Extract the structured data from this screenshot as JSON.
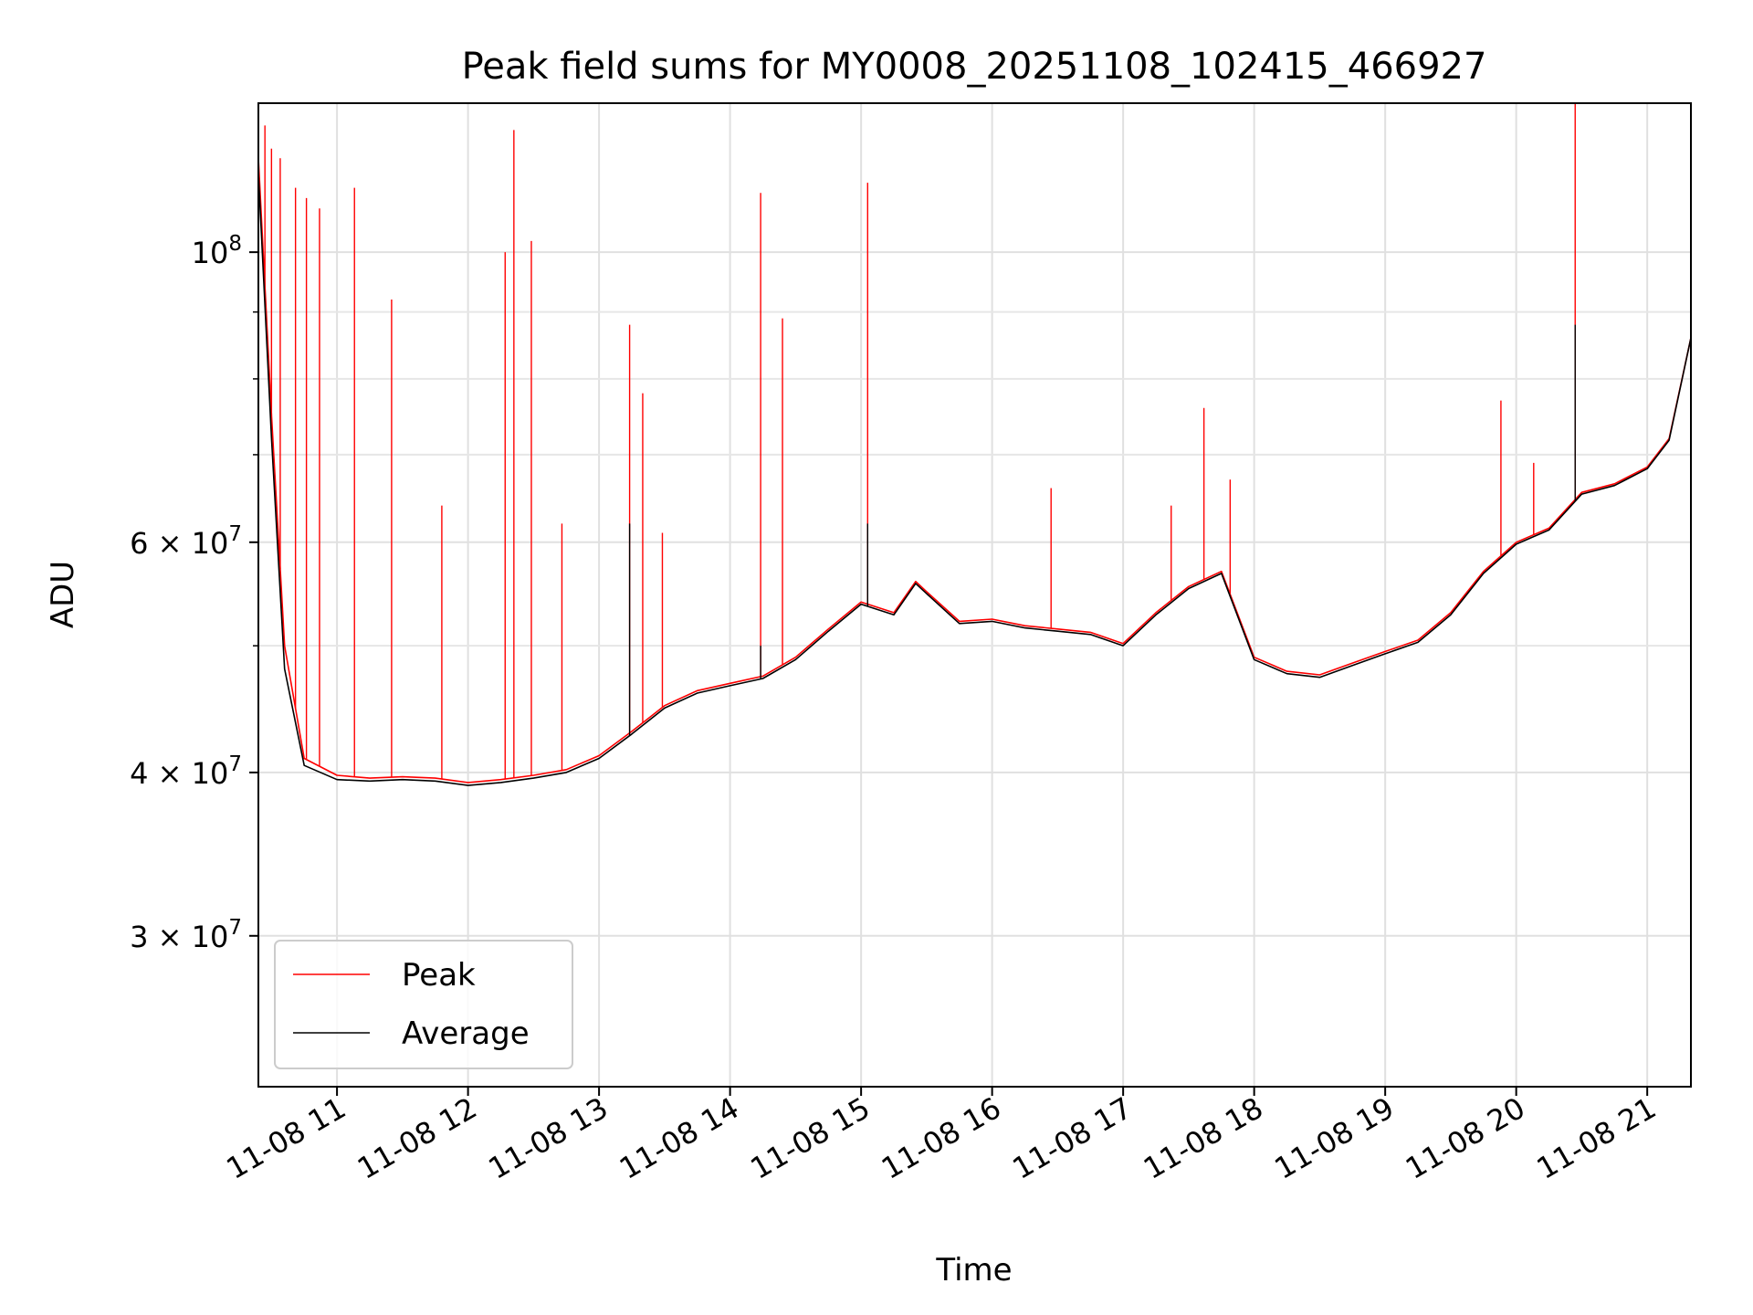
{
  "chart_data": {
    "type": "line",
    "title": "Peak field sums for MY0008_20251108_102415_466927",
    "xlabel": "Time",
    "ylabel": "ADU",
    "yscale": "log",
    "grid": true,
    "legend_position": "lower-left",
    "xlim": [
      "2025-11-08 10:24",
      "2025-11-08 21:20"
    ],
    "ylim": [
      23000000,
      130000000
    ],
    "x_ticks": [
      {
        "value": "2025-11-08 11:00",
        "label": "11-08 11"
      },
      {
        "value": "2025-11-08 12:00",
        "label": "11-08 12"
      },
      {
        "value": "2025-11-08 13:00",
        "label": "11-08 13"
      },
      {
        "value": "2025-11-08 14:00",
        "label": "11-08 14"
      },
      {
        "value": "2025-11-08 15:00",
        "label": "11-08 15"
      },
      {
        "value": "2025-11-08 16:00",
        "label": "11-08 16"
      },
      {
        "value": "2025-11-08 17:00",
        "label": "11-08 17"
      },
      {
        "value": "2025-11-08 18:00",
        "label": "11-08 18"
      },
      {
        "value": "2025-11-08 19:00",
        "label": "11-08 19"
      },
      {
        "value": "2025-11-08 20:00",
        "label": "11-08 20"
      },
      {
        "value": "2025-11-08 21:00",
        "label": "11-08 21"
      }
    ],
    "y_ticks_major": [
      {
        "value": 100000000,
        "base": "10",
        "exp": "8"
      },
      {
        "value": 60000000,
        "base": "6 × 10",
        "exp": "7"
      },
      {
        "value": 40000000,
        "base": "4 × 10",
        "exp": "7"
      },
      {
        "value": 30000000,
        "base": "3 × 10",
        "exp": "7"
      }
    ],
    "y_ticks_minor": [
      70000000,
      80000000,
      90000000,
      50000000
    ],
    "colors": {
      "Peak": "#ff0000",
      "Average": "#000000"
    },
    "series": [
      {
        "name": "Peak",
        "color": "#ff0000",
        "x": [
          "2025-11-08 10:24",
          "2025-11-08 10:30",
          "2025-11-08 10:36",
          "2025-11-08 10:45",
          "2025-11-08 11:00",
          "2025-11-08 11:15",
          "2025-11-08 11:30",
          "2025-11-08 11:45",
          "2025-11-08 12:00",
          "2025-11-08 12:15",
          "2025-11-08 12:30",
          "2025-11-08 12:45",
          "2025-11-08 13:00",
          "2025-11-08 13:15",
          "2025-11-08 13:30",
          "2025-11-08 13:45",
          "2025-11-08 14:00",
          "2025-11-08 14:15",
          "2025-11-08 14:30",
          "2025-11-08 14:45",
          "2025-11-08 15:00",
          "2025-11-08 15:15",
          "2025-11-08 15:25",
          "2025-11-08 15:30",
          "2025-11-08 15:45",
          "2025-11-08 16:00",
          "2025-11-08 16:15",
          "2025-11-08 16:30",
          "2025-11-08 16:45",
          "2025-11-08 17:00",
          "2025-11-08 17:15",
          "2025-11-08 17:30",
          "2025-11-08 17:45",
          "2025-11-08 18:00",
          "2025-11-08 18:15",
          "2025-11-08 18:30",
          "2025-11-08 18:45",
          "2025-11-08 19:00",
          "2025-11-08 19:15",
          "2025-11-08 19:30",
          "2025-11-08 19:45",
          "2025-11-08 20:00",
          "2025-11-08 20:15",
          "2025-11-08 20:30",
          "2025-11-08 20:45",
          "2025-11-08 21:00",
          "2025-11-08 21:10",
          "2025-11-08 21:20"
        ],
        "y": [
          118000000,
          75000000,
          50000000,
          41000000,
          39800000,
          39600000,
          39700000,
          39600000,
          39300000,
          39500000,
          39800000,
          40200000,
          41200000,
          43000000,
          45000000,
          46200000,
          46800000,
          47400000,
          49000000,
          51500000,
          54000000,
          53000000,
          56000000,
          55000000,
          52200000,
          52400000,
          51800000,
          51500000,
          51200000,
          50200000,
          53000000,
          55500000,
          57000000,
          49000000,
          47800000,
          47500000,
          48500000,
          49500000,
          50500000,
          53000000,
          57000000,
          60000000,
          61500000,
          65500000,
          66500000,
          68500000,
          72000000,
          86000000
        ],
        "spikes": [
          {
            "x": "2025-11-08 10:27",
            "y": 125000000
          },
          {
            "x": "2025-11-08 10:30",
            "y": 120000000
          },
          {
            "x": "2025-11-08 10:34",
            "y": 118000000
          },
          {
            "x": "2025-11-08 10:41",
            "y": 112000000
          },
          {
            "x": "2025-11-08 10:46",
            "y": 110000000
          },
          {
            "x": "2025-11-08 10:52",
            "y": 108000000
          },
          {
            "x": "2025-11-08 11:08",
            "y": 112000000
          },
          {
            "x": "2025-11-08 11:25",
            "y": 92000000
          },
          {
            "x": "2025-11-08 11:48",
            "y": 64000000
          },
          {
            "x": "2025-11-08 12:17",
            "y": 100000000
          },
          {
            "x": "2025-11-08 12:21",
            "y": 124000000
          },
          {
            "x": "2025-11-08 12:29",
            "y": 102000000
          },
          {
            "x": "2025-11-08 12:43",
            "y": 62000000
          },
          {
            "x": "2025-11-08 13:14",
            "y": 88000000
          },
          {
            "x": "2025-11-08 13:20",
            "y": 78000000
          },
          {
            "x": "2025-11-08 13:29",
            "y": 61000000
          },
          {
            "x": "2025-11-08 14:14",
            "y": 111000000
          },
          {
            "x": "2025-11-08 14:24",
            "y": 89000000
          },
          {
            "x": "2025-11-08 15:03",
            "y": 113000000
          },
          {
            "x": "2025-11-08 16:27",
            "y": 66000000
          },
          {
            "x": "2025-11-08 17:22",
            "y": 64000000
          },
          {
            "x": "2025-11-08 17:37",
            "y": 76000000
          },
          {
            "x": "2025-11-08 17:49",
            "y": 67000000
          },
          {
            "x": "2025-11-08 19:53",
            "y": 77000000
          },
          {
            "x": "2025-11-08 20:08",
            "y": 69000000
          },
          {
            "x": "2025-11-08 20:27",
            "y": 130000000
          }
        ]
      },
      {
        "name": "Average",
        "color": "#000000",
        "x": [
          "2025-11-08 10:24",
          "2025-11-08 10:30",
          "2025-11-08 10:36",
          "2025-11-08 10:45",
          "2025-11-08 11:00",
          "2025-11-08 11:15",
          "2025-11-08 11:30",
          "2025-11-08 11:45",
          "2025-11-08 12:00",
          "2025-11-08 12:15",
          "2025-11-08 12:30",
          "2025-11-08 12:45",
          "2025-11-08 13:00",
          "2025-11-08 13:15",
          "2025-11-08 13:30",
          "2025-11-08 13:45",
          "2025-11-08 14:00",
          "2025-11-08 14:15",
          "2025-11-08 14:30",
          "2025-11-08 14:45",
          "2025-11-08 15:00",
          "2025-11-08 15:15",
          "2025-11-08 15:25",
          "2025-11-08 15:30",
          "2025-11-08 15:45",
          "2025-11-08 16:00",
          "2025-11-08 16:15",
          "2025-11-08 16:30",
          "2025-11-08 16:45",
          "2025-11-08 17:00",
          "2025-11-08 17:15",
          "2025-11-08 17:30",
          "2025-11-08 17:45",
          "2025-11-08 18:00",
          "2025-11-08 18:15",
          "2025-11-08 18:30",
          "2025-11-08 18:45",
          "2025-11-08 19:00",
          "2025-11-08 19:15",
          "2025-11-08 19:30",
          "2025-11-08 19:45",
          "2025-11-08 20:00",
          "2025-11-08 20:15",
          "2025-11-08 20:30",
          "2025-11-08 20:45",
          "2025-11-08 21:00",
          "2025-11-08 21:10",
          "2025-11-08 21:20"
        ],
        "y": [
          115000000,
          72000000,
          48000000,
          40500000,
          39500000,
          39400000,
          39500000,
          39400000,
          39100000,
          39300000,
          39600000,
          40000000,
          41000000,
          42800000,
          44800000,
          46000000,
          46600000,
          47200000,
          48800000,
          51300000,
          53800000,
          52800000,
          55800000,
          54800000,
          52000000,
          52200000,
          51600000,
          51300000,
          51000000,
          50000000,
          52800000,
          55300000,
          56800000,
          48800000,
          47600000,
          47300000,
          48300000,
          49300000,
          50300000,
          52800000,
          56800000,
          59800000,
          61300000,
          65300000,
          66300000,
          68300000,
          71800000,
          86000000
        ],
        "spikes": [
          {
            "x": "2025-11-08 13:14",
            "y": 62000000
          },
          {
            "x": "2025-11-08 14:14",
            "y": 50000000
          },
          {
            "x": "2025-11-08 15:03",
            "y": 62000000
          },
          {
            "x": "2025-11-08 20:27",
            "y": 88000000
          }
        ]
      }
    ]
  }
}
